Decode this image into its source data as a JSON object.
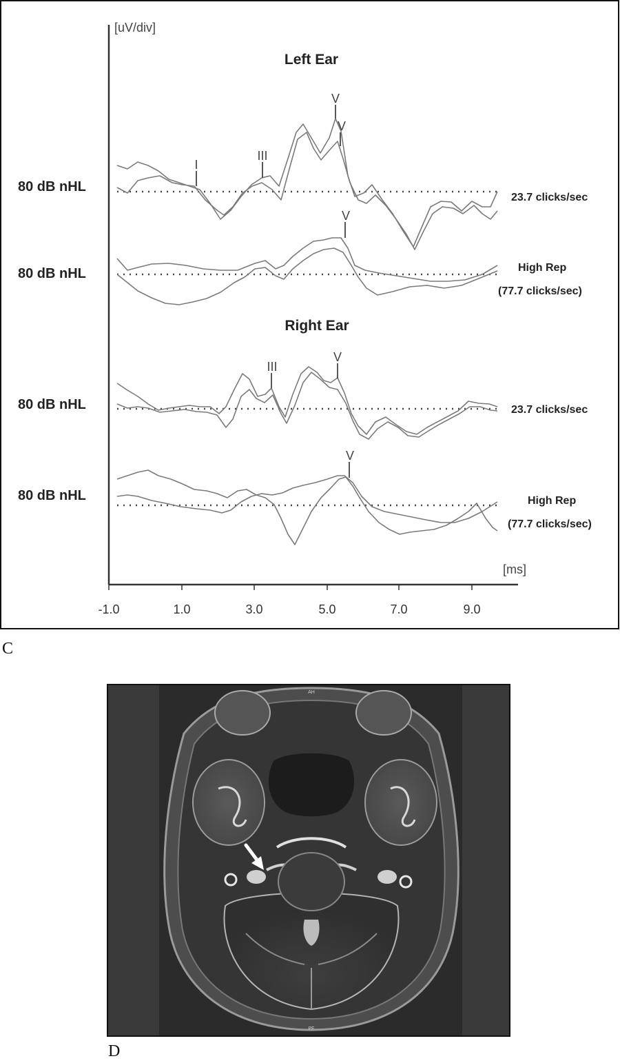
{
  "panel_c": {
    "letter": "C",
    "y_unit_label": "[uV/div]",
    "x_unit_label": "[ms]",
    "x_ticks": [
      "-1.0",
      "1.0",
      "3.0",
      "5.0",
      "7.0",
      "9.0"
    ],
    "sections": [
      {
        "title": "Left Ear"
      },
      {
        "title": "Right Ear"
      }
    ],
    "traces": [
      {
        "level": "80 dB nHL",
        "rate": [
          "23.7 clicks/sec"
        ],
        "peaks": [
          "I",
          "III",
          "V",
          "V"
        ]
      },
      {
        "level": "80 dB nHL",
        "rate": [
          "High Rep",
          "(77.7 clicks/sec)"
        ],
        "peaks": [
          "V"
        ]
      },
      {
        "level": "80 dB nHL",
        "rate": [
          "23.7 clicks/sec"
        ],
        "peaks": [
          "III",
          "V"
        ]
      },
      {
        "level": "80 dB nHL",
        "rate": [
          "High Rep",
          "(77.7 clicks/sec)"
        ],
        "peaks": [
          "V"
        ]
      }
    ]
  },
  "panel_d": {
    "letter": "D",
    "top_marker": "AH",
    "bottom_marker": "PF"
  },
  "chart_data": {
    "type": "line",
    "xlabel": "[ms]",
    "ylabel": "[uV/div]",
    "xlim": [
      -1.0,
      10.0
    ],
    "x_ticks": [
      -1.0,
      1.0,
      3.0,
      5.0,
      7.0,
      9.0
    ],
    "series": [],
    "colors": {
      "trace": "#777777",
      "axis": "#333333",
      "frame": "#111111"
    }
  }
}
